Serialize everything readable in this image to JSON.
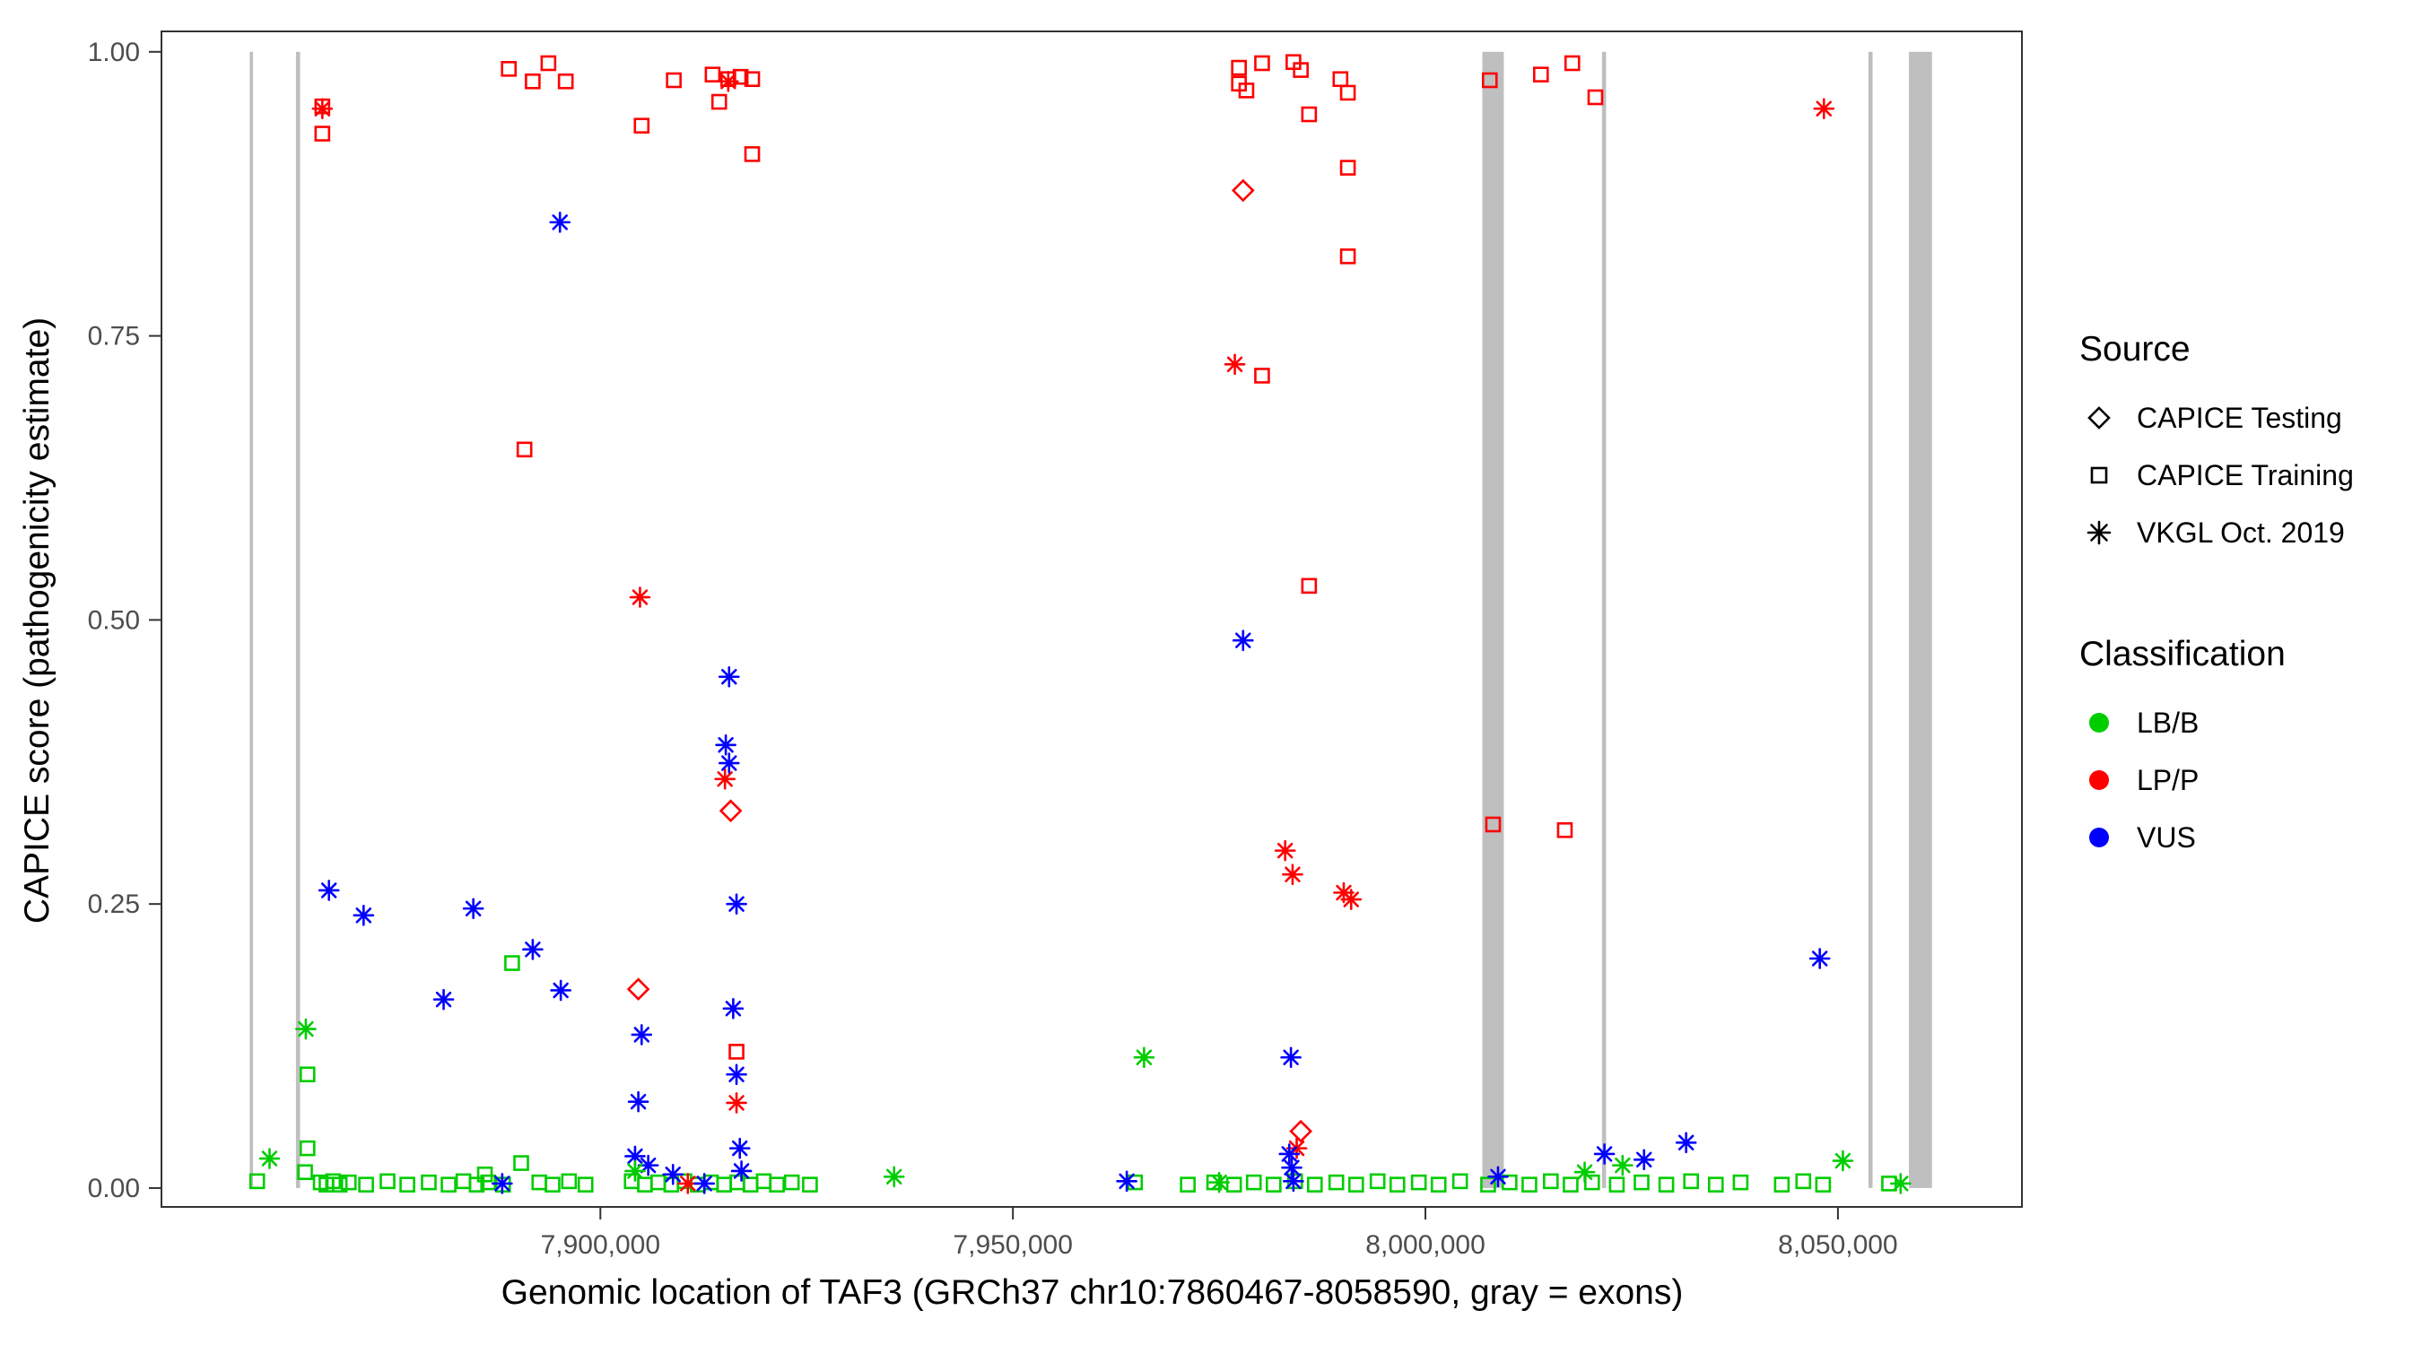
{
  "axes": {
    "x": {
      "label": "Genomic location of TAF3 (GRCh37 chr10:7860467-8058590, gray = exons)",
      "domain": [
        7846800,
        8072300
      ],
      "ticks": [
        7900000,
        7950000,
        8000000,
        8050000
      ],
      "tick_labels": [
        "7,900,000",
        "7,950,000",
        "8,000,000",
        "8,050,000"
      ]
    },
    "y": {
      "label": "CAPICE score (pathogenicity estimate)",
      "domain": [
        -0.0166,
        1.018
      ],
      "ticks": [
        0,
        0.25,
        0.5,
        0.75,
        1
      ],
      "tick_labels": [
        "0.00",
        "0.25",
        "0.50",
        "0.75",
        "1.00"
      ]
    }
  },
  "legend": {
    "source": {
      "title": "Source",
      "items": [
        {
          "label": "CAPICE Testing",
          "shape": "diamond"
        },
        {
          "label": "CAPICE Training",
          "shape": "square"
        },
        {
          "label": "VKGL Oct. 2019",
          "shape": "asterisk"
        }
      ]
    },
    "classification": {
      "title": "Classification",
      "items": [
        {
          "label": "LB/B",
          "color": "#00cd00"
        },
        {
          "label": "LP/P",
          "color": "#ff0000"
        },
        {
          "label": "VUS",
          "color": "#0000ff"
        }
      ]
    }
  },
  "colors": {
    "exon_gray": "#bfbfbf",
    "panel_border": "#333333",
    "tick_text": "#4d4d4d",
    "lbb_green": "#00cd00",
    "lpp_red": "#ff0000",
    "vus_blue": "#0000ff"
  },
  "chart_data": {
    "type": "scatter",
    "title": "",
    "xlabel": "Genomic location of TAF3 (GRCh37 chr10:7860467-8058590, gray = exons)",
    "ylabel": "CAPICE score (pathogenicity estimate)",
    "xlim": [
      7846800,
      8072300
    ],
    "ylim": [
      0,
      1
    ],
    "grid": false,
    "legend_position": "right",
    "exons": [
      [
        7857500,
        7857900
      ],
      [
        7863100,
        7863600
      ],
      [
        8006900,
        8009500
      ],
      [
        8021400,
        8021900
      ],
      [
        8053700,
        8054200
      ],
      [
        8058600,
        8061400
      ]
    ],
    "series": [
      {
        "name": "CAPICE Training / LP/P",
        "source": "CAPICE Training",
        "classification": "LP/P",
        "shape": "square",
        "color": "#ff0000",
        "points": [
          [
            7866300,
            0.952
          ],
          [
            7866300,
            0.928
          ],
          [
            7888900,
            0.985
          ],
          [
            7891800,
            0.974
          ],
          [
            7893700,
            0.99
          ],
          [
            7895800,
            0.974
          ],
          [
            7890800,
            0.65
          ],
          [
            7905000,
            0.935
          ],
          [
            7908900,
            0.975
          ],
          [
            7913600,
            0.98
          ],
          [
            7914400,
            0.956
          ],
          [
            7915500,
            0.976
          ],
          [
            7917000,
            0.978
          ],
          [
            7918400,
            0.976
          ],
          [
            7918400,
            0.91
          ],
          [
            7916500,
            0.12
          ],
          [
            7977400,
            0.986
          ],
          [
            7977400,
            0.972
          ],
          [
            7978300,
            0.966
          ],
          [
            7980200,
            0.99
          ],
          [
            7984000,
            0.991
          ],
          [
            7984900,
            0.984
          ],
          [
            7985900,
            0.945
          ],
          [
            7989700,
            0.976
          ],
          [
            7990600,
            0.964
          ],
          [
            7990600,
            0.898
          ],
          [
            7990600,
            0.82
          ],
          [
            7980200,
            0.715
          ],
          [
            7985900,
            0.53
          ],
          [
            8007800,
            0.975
          ],
          [
            8014000,
            0.98
          ],
          [
            8017800,
            0.99
          ],
          [
            8020600,
            0.96
          ],
          [
            8008200,
            0.32
          ],
          [
            8016900,
            0.315
          ]
        ]
      },
      {
        "name": "CAPICE Training / LB/B",
        "source": "CAPICE Training",
        "classification": "LB/B",
        "shape": "square",
        "color": "#00cd00",
        "points": [
          [
            7864500,
            0.1
          ],
          [
            7864500,
            0.035
          ],
          [
            7864200,
            0.014
          ],
          [
            7889300,
            0.198
          ],
          [
            7890400,
            0.022
          ],
          [
            7886000,
            0.012
          ],
          [
            7858400,
            0.006
          ],
          [
            7866100,
            0.005
          ],
          [
            7866800,
            0.003
          ],
          [
            7867600,
            0.006
          ],
          [
            7868400,
            0.003
          ],
          [
            7869500,
            0.005
          ],
          [
            7871600,
            0.003
          ],
          [
            7874200,
            0.006
          ],
          [
            7876600,
            0.003
          ],
          [
            7879200,
            0.005
          ],
          [
            7881600,
            0.003
          ],
          [
            7883400,
            0.006
          ],
          [
            7885000,
            0.003
          ],
          [
            7886400,
            0.005
          ],
          [
            7888200,
            0.003
          ],
          [
            7892600,
            0.005
          ],
          [
            7894200,
            0.003
          ],
          [
            7896200,
            0.006
          ],
          [
            7898200,
            0.003
          ],
          [
            7903800,
            0.006
          ],
          [
            7905400,
            0.003
          ],
          [
            7907000,
            0.005
          ],
          [
            7908600,
            0.003
          ],
          [
            7910200,
            0.006
          ],
          [
            7911800,
            0.003
          ],
          [
            7913400,
            0.005
          ],
          [
            7915000,
            0.003
          ],
          [
            7916600,
            0.005
          ],
          [
            7918200,
            0.003
          ],
          [
            7919800,
            0.006
          ],
          [
            7921400,
            0.003
          ],
          [
            7923200,
            0.005
          ],
          [
            7925400,
            0.003
          ],
          [
            7964800,
            0.005
          ],
          [
            7971200,
            0.003
          ],
          [
            7974400,
            0.005
          ],
          [
            7976800,
            0.003
          ],
          [
            7979200,
            0.005
          ],
          [
            7981600,
            0.003
          ],
          [
            7984200,
            0.006
          ],
          [
            7986600,
            0.003
          ],
          [
            7989200,
            0.005
          ],
          [
            7991600,
            0.003
          ],
          [
            7994200,
            0.006
          ],
          [
            7996600,
            0.003
          ],
          [
            7999200,
            0.005
          ],
          [
            8001600,
            0.003
          ],
          [
            8004200,
            0.006
          ],
          [
            8007600,
            0.003
          ],
          [
            8010200,
            0.005
          ],
          [
            8012600,
            0.003
          ],
          [
            8015200,
            0.006
          ],
          [
            8017600,
            0.003
          ],
          [
            8020200,
            0.005
          ],
          [
            8023200,
            0.003
          ],
          [
            8026200,
            0.005
          ],
          [
            8029200,
            0.003
          ],
          [
            8032200,
            0.006
          ],
          [
            8035200,
            0.003
          ],
          [
            8038200,
            0.005
          ],
          [
            8043200,
            0.003
          ],
          [
            8045800,
            0.006
          ],
          [
            8048200,
            0.003
          ],
          [
            8056200,
            0.004
          ]
        ]
      },
      {
        "name": "CAPICE Testing / LP/P",
        "source": "CAPICE Testing",
        "classification": "LP/P",
        "shape": "diamond",
        "color": "#ff0000",
        "points": [
          [
            7904600,
            0.175
          ],
          [
            7915800,
            0.332
          ],
          [
            7977900,
            0.878
          ],
          [
            7984900,
            0.05
          ]
        ]
      },
      {
        "name": "VKGL Oct. 2019 / LP/P",
        "source": "VKGL Oct. 2019",
        "classification": "LP/P",
        "shape": "asterisk",
        "color": "#ff0000",
        "points": [
          [
            7866300,
            0.95
          ],
          [
            7904800,
            0.52
          ],
          [
            7915500,
            0.974
          ],
          [
            7915100,
            0.36
          ],
          [
            7916500,
            0.075
          ],
          [
            7976900,
            0.725
          ],
          [
            7983000,
            0.297
          ],
          [
            7983900,
            0.276
          ],
          [
            7990100,
            0.26
          ],
          [
            7991000,
            0.254
          ],
          [
            7984400,
            0.035
          ],
          [
            7910600,
            0.004
          ],
          [
            8048300,
            0.95
          ]
        ]
      },
      {
        "name": "VKGL Oct. 2019 / VUS",
        "source": "VKGL Oct. 2019",
        "classification": "VUS",
        "shape": "asterisk",
        "color": "#0000ff",
        "points": [
          [
            7895100,
            0.85
          ],
          [
            7867100,
            0.262
          ],
          [
            7871300,
            0.24
          ],
          [
            7881000,
            0.166
          ],
          [
            7884600,
            0.246
          ],
          [
            7891800,
            0.21
          ],
          [
            7895200,
            0.174
          ],
          [
            7888100,
            0.004
          ],
          [
            7905000,
            0.135
          ],
          [
            7904600,
            0.076
          ],
          [
            7904200,
            0.028
          ],
          [
            7905800,
            0.02
          ],
          [
            7908800,
            0.012
          ],
          [
            7912600,
            0.004
          ],
          [
            7915600,
            0.45
          ],
          [
            7915200,
            0.39
          ],
          [
            7915600,
            0.374
          ],
          [
            7916500,
            0.25
          ],
          [
            7916100,
            0.158
          ],
          [
            7916500,
            0.1
          ],
          [
            7916900,
            0.035
          ],
          [
            7917100,
            0.015
          ],
          [
            7963800,
            0.006
          ],
          [
            7977900,
            0.482
          ],
          [
            7983700,
            0.115
          ],
          [
            7983500,
            0.03
          ],
          [
            7983800,
            0.018
          ],
          [
            7984000,
            0.006
          ],
          [
            8008800,
            0.01
          ],
          [
            8021700,
            0.03
          ],
          [
            8026500,
            0.025
          ],
          [
            8031600,
            0.04
          ],
          [
            8047800,
            0.202
          ]
        ]
      },
      {
        "name": "VKGL Oct. 2019 / LB/B",
        "source": "VKGL Oct. 2019",
        "classification": "LB/B",
        "shape": "asterisk",
        "color": "#00cd00",
        "points": [
          [
            7859900,
            0.026
          ],
          [
            7864300,
            0.14
          ],
          [
            7904200,
            0.015
          ],
          [
            7935600,
            0.01
          ],
          [
            7965900,
            0.115
          ],
          [
            7975000,
            0.005
          ],
          [
            8019300,
            0.014
          ],
          [
            8023900,
            0.02
          ],
          [
            8050600,
            0.024
          ],
          [
            8057600,
            0.004
          ]
        ]
      }
    ]
  }
}
